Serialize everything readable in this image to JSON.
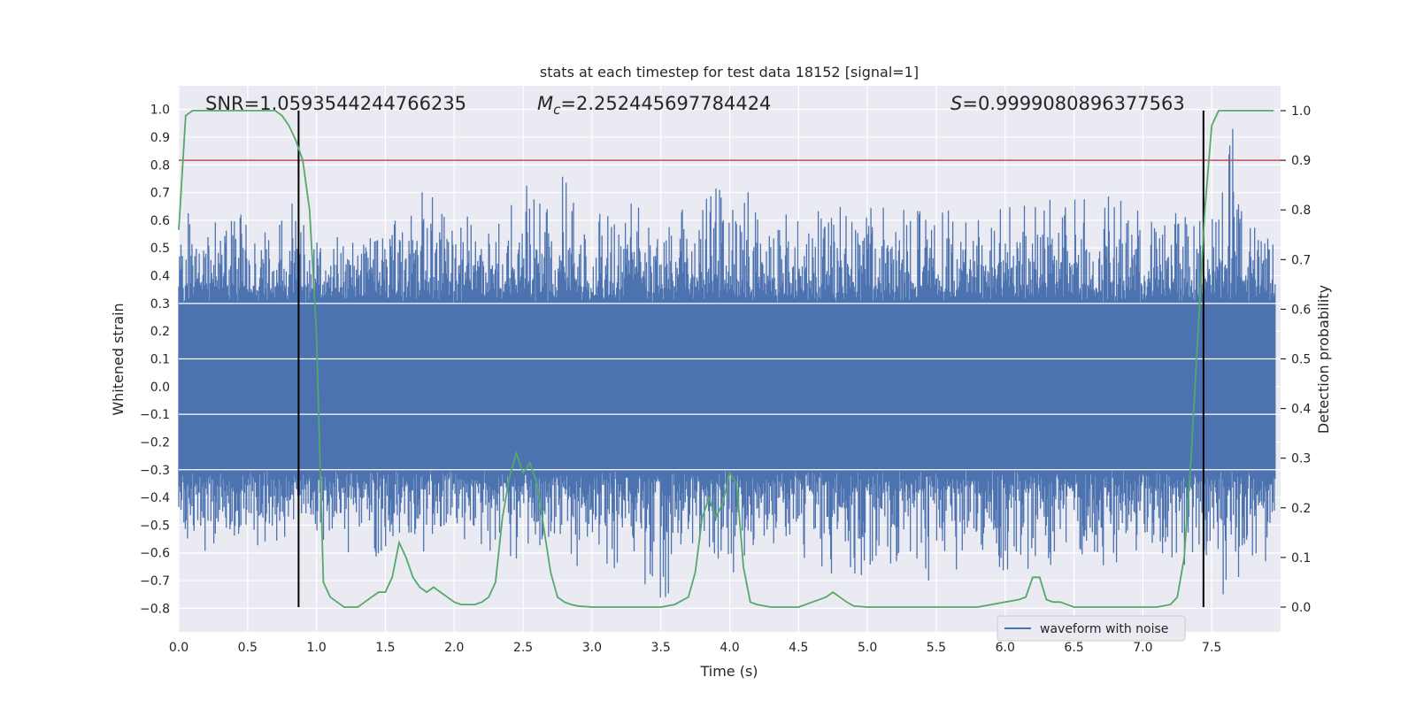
{
  "chart_data": {
    "type": "line",
    "title": "stats at each timestep for test data 18152 [signal=1]",
    "xlabel": "Time (s)",
    "ylabel_left": "Whitened strain",
    "ylabel_right": "Detection probability",
    "xlim": [
      0.0,
      8.0
    ],
    "ylim_left": [
      -0.885,
      1.085
    ],
    "ylim_right": [
      -0.05,
      1.05
    ],
    "x_ticks": [
      "0.0",
      "0.5",
      "1.0",
      "1.5",
      "2.0",
      "2.5",
      "3.0",
      "3.5",
      "4.0",
      "4.5",
      "5.0",
      "5.5",
      "6.0",
      "6.5",
      "7.0",
      "7.5"
    ],
    "y_ticks_left": [
      "1.0",
      "0.9",
      "0.8",
      "0.7",
      "0.6",
      "0.5",
      "0.4",
      "0.3",
      "0.2",
      "0.1",
      "0.0",
      "−0.1",
      "−0.2",
      "−0.3",
      "−0.4",
      "−0.5",
      "−0.6",
      "−0.7",
      "−0.8"
    ],
    "y_ticks_right": [
      "1.0",
      "0.9",
      "0.8",
      "0.7",
      "0.6",
      "0.5",
      "0.4",
      "0.3",
      "0.2",
      "0.1",
      "0.0"
    ],
    "grid": true,
    "legend_position": "lower-right",
    "annotations": {
      "snr": "SNR=1.0593544244766235",
      "mc_symbol": "M",
      "mc_subscript": "c",
      "mc_value": "=2.252445697784424",
      "s_symbol": "S",
      "s_value": "=0.9999080896377563"
    },
    "threshold_line": {
      "axis": "right",
      "y": 0.9,
      "color": "#c44e52"
    },
    "vertical_lines": {
      "x": [
        0.87,
        7.44
      ],
      "color": "#000000"
    },
    "series": [
      {
        "name": "waveform with noise",
        "axis": "left",
        "color": "#4c72b0",
        "representation": "dense noise waveform; approximate envelope",
        "envelope_x": [
          0.0,
          0.25,
          0.5,
          0.75,
          0.9,
          1.0,
          1.25,
          1.5,
          1.75,
          2.0,
          2.25,
          2.5,
          2.75,
          3.0,
          3.25,
          3.5,
          3.75,
          4.0,
          4.25,
          4.5,
          4.75,
          5.0,
          5.25,
          5.5,
          5.75,
          6.0,
          6.25,
          6.5,
          6.75,
          7.0,
          7.25,
          7.4,
          7.5,
          7.65,
          7.75,
          8.0
        ],
        "envelope_max": [
          0.63,
          0.62,
          0.65,
          0.6,
          0.73,
          0.57,
          0.58,
          0.68,
          0.73,
          0.65,
          0.58,
          0.72,
          0.78,
          0.65,
          0.68,
          0.63,
          0.66,
          0.75,
          0.66,
          0.62,
          0.7,
          0.68,
          0.64,
          0.66,
          0.62,
          0.65,
          0.68,
          0.68,
          0.7,
          0.66,
          0.72,
          0.58,
          0.72,
          1.0,
          0.72,
          0.62
        ],
        "envelope_min": [
          -0.68,
          -0.62,
          -0.6,
          -0.55,
          -0.5,
          -0.62,
          -0.6,
          -0.62,
          -0.65,
          -0.55,
          -0.6,
          -0.65,
          -0.62,
          -0.68,
          -0.72,
          -0.78,
          -0.65,
          -0.72,
          -0.6,
          -0.62,
          -0.68,
          -0.72,
          -0.65,
          -0.75,
          -0.62,
          -0.68,
          -0.65,
          -0.63,
          -0.65,
          -0.62,
          -0.68,
          -0.6,
          -0.72,
          -0.8,
          -0.7,
          -0.62
        ]
      },
      {
        "name": "",
        "axis": "right",
        "color": "#55a868",
        "x": [
          0.0,
          0.05,
          0.1,
          0.15,
          0.2,
          0.3,
          0.4,
          0.5,
          0.6,
          0.65,
          0.7,
          0.75,
          0.8,
          0.85,
          0.9,
          0.95,
          1.0,
          1.05,
          1.1,
          1.15,
          1.2,
          1.25,
          1.3,
          1.35,
          1.4,
          1.45,
          1.5,
          1.55,
          1.6,
          1.65,
          1.7,
          1.75,
          1.8,
          1.85,
          1.9,
          1.95,
          2.0,
          2.05,
          2.1,
          2.15,
          2.2,
          2.25,
          2.3,
          2.35,
          2.4,
          2.45,
          2.5,
          2.55,
          2.6,
          2.65,
          2.7,
          2.75,
          2.8,
          2.85,
          2.9,
          2.95,
          3.0,
          3.1,
          3.2,
          3.3,
          3.4,
          3.5,
          3.6,
          3.7,
          3.75,
          3.8,
          3.85,
          3.9,
          3.95,
          4.0,
          4.05,
          4.1,
          4.15,
          4.2,
          4.3,
          4.4,
          4.5,
          4.6,
          4.7,
          4.75,
          4.8,
          4.85,
          4.9,
          4.95,
          5.0,
          5.2,
          5.4,
          5.6,
          5.8,
          5.9,
          6.0,
          6.1,
          6.15,
          6.2,
          6.25,
          6.3,
          6.35,
          6.4,
          6.5,
          6.6,
          6.7,
          6.8,
          6.9,
          7.0,
          7.1,
          7.2,
          7.25,
          7.3,
          7.35,
          7.4,
          7.45,
          7.5,
          7.55,
          7.6,
          7.7,
          7.8,
          7.9,
          7.95
        ],
        "y": [
          0.76,
          0.99,
          1.0,
          1.0,
          1.0,
          1.0,
          1.0,
          1.0,
          1.0,
          1.0,
          1.0,
          0.99,
          0.97,
          0.94,
          0.9,
          0.8,
          0.55,
          0.05,
          0.02,
          0.01,
          0.0,
          0.0,
          0.0,
          0.01,
          0.02,
          0.03,
          0.03,
          0.06,
          0.13,
          0.1,
          0.06,
          0.04,
          0.03,
          0.04,
          0.03,
          0.02,
          0.01,
          0.005,
          0.005,
          0.005,
          0.01,
          0.02,
          0.05,
          0.18,
          0.26,
          0.31,
          0.27,
          0.29,
          0.25,
          0.16,
          0.07,
          0.02,
          0.01,
          0.005,
          0.002,
          0.001,
          0.0,
          0.0,
          0.0,
          0.0,
          0.0,
          0.0,
          0.005,
          0.02,
          0.07,
          0.18,
          0.22,
          0.18,
          0.21,
          0.27,
          0.25,
          0.08,
          0.01,
          0.005,
          0.0,
          0.0,
          0.0,
          0.01,
          0.02,
          0.03,
          0.02,
          0.01,
          0.002,
          0.001,
          0.0,
          0.0,
          0.0,
          0.0,
          0.0,
          0.005,
          0.01,
          0.015,
          0.02,
          0.06,
          0.06,
          0.015,
          0.01,
          0.01,
          0.0,
          0.0,
          0.0,
          0.0,
          0.0,
          0.0,
          0.0,
          0.005,
          0.02,
          0.1,
          0.3,
          0.55,
          0.8,
          0.97,
          1.0,
          1.0,
          1.0,
          1.0,
          1.0,
          1.0
        ]
      }
    ]
  }
}
